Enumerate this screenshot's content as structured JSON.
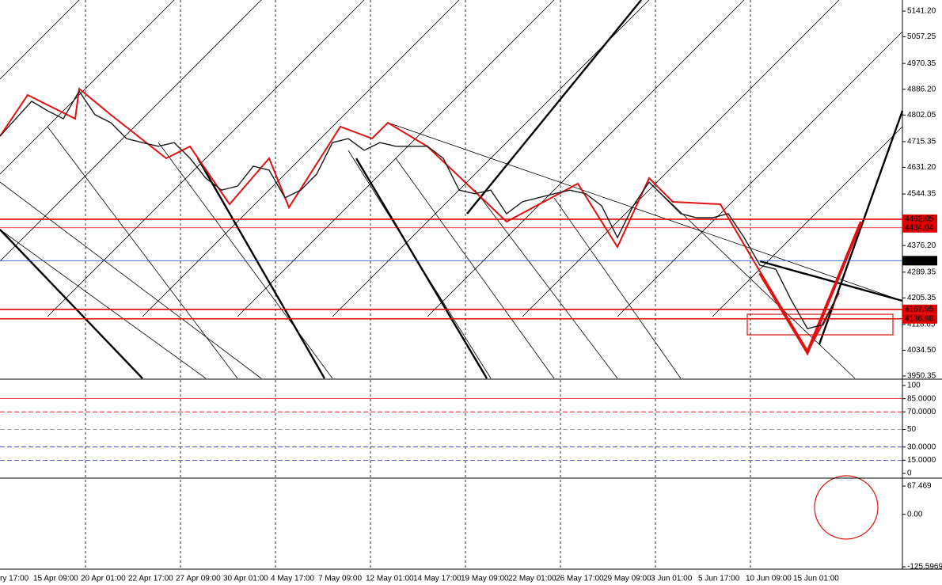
{
  "chart_data": {
    "type": "line",
    "x_labels": [
      "ry 17:00",
      "15 Apr 09:00",
      "20 Apr 01:00",
      "22 Apr 17:00",
      "27 Apr 09:00",
      "30 Apr 01:00",
      "4 May 17:00",
      "7 May 09:00",
      "12 May 01:00",
      "14 May 17:00",
      "19 May 09:00",
      "22 May 01:00",
      "26 May 17:00",
      "29 May 09:00",
      "3 Jun 01:00",
      "5 Jun 17:00",
      "10 Jun 09:00",
      "15 Jun 01:00"
    ],
    "series": [
      {
        "color": "#1a1a1a",
        "values": [
          4733,
          4790,
          4847,
          4816,
          4790,
          4880,
          4803,
          4777,
          4725,
          4712,
          4700,
          4712,
          4661,
          4596,
          4557,
          4570,
          4635,
          4622,
          4532,
          4557,
          4609,
          4712,
          4725,
          4687,
          4712,
          4700,
          4700,
          4700,
          4661,
          4557,
          4545,
          4557,
          4480,
          4519,
          4532,
          4545,
          4557,
          4545,
          4506,
          4402,
          4506,
          4583,
          4532,
          4480,
          4467,
          4467,
          4480,
          4402,
          4312,
          4299,
          4196,
          4105,
          4118,
          4227
        ]
      }
    ],
    "ylim": [
      3942.6,
      5177.4
    ],
    "yticks": [
      {
        "value": 5141.2,
        "label": "5141.20"
      },
      5057.25,
      4970.35,
      {
        "value": 4886.2,
        "label": "4886.20"
      },
      4802.05,
      4715.35,
      {
        "value": 4631.2,
        "label": "4631.20"
      },
      4544.35,
      {
        "value": 4376.2,
        "label": "4376.20"
      },
      4289.35,
      4205.35,
      4118.65,
      {
        "value": 4034.5,
        "label": "4034.50"
      },
      3950.35
    ],
    "price_levels": [
      {
        "value": 4462.05,
        "color": "#e00000"
      },
      {
        "value": 4434.04,
        "color": "#e00000"
      },
      {
        "value": 4326.69,
        "color": "#2255cc"
      },
      {
        "value": 4167.95,
        "color": "#e00000"
      },
      {
        "value": 4136.98,
        "color": "#e00000"
      }
    ],
    "oscillator": {
      "ylim": [
        0,
        100
      ],
      "yticks": [
        100,
        {
          "value": 85,
          "label": "85.0000"
        },
        {
          "value": 70,
          "label": "70.0000"
        },
        50,
        {
          "value": 30,
          "label": "30.0000"
        },
        {
          "value": 15,
          "label": "15.0000"
        },
        0
      ]
    },
    "histogram": {
      "ylim": [
        -125.5969,
        67.469
      ],
      "yticks": [
        67.469,
        {
          "value": 0,
          "label": "0.00"
        },
        -125.5969
      ]
    }
  }
}
